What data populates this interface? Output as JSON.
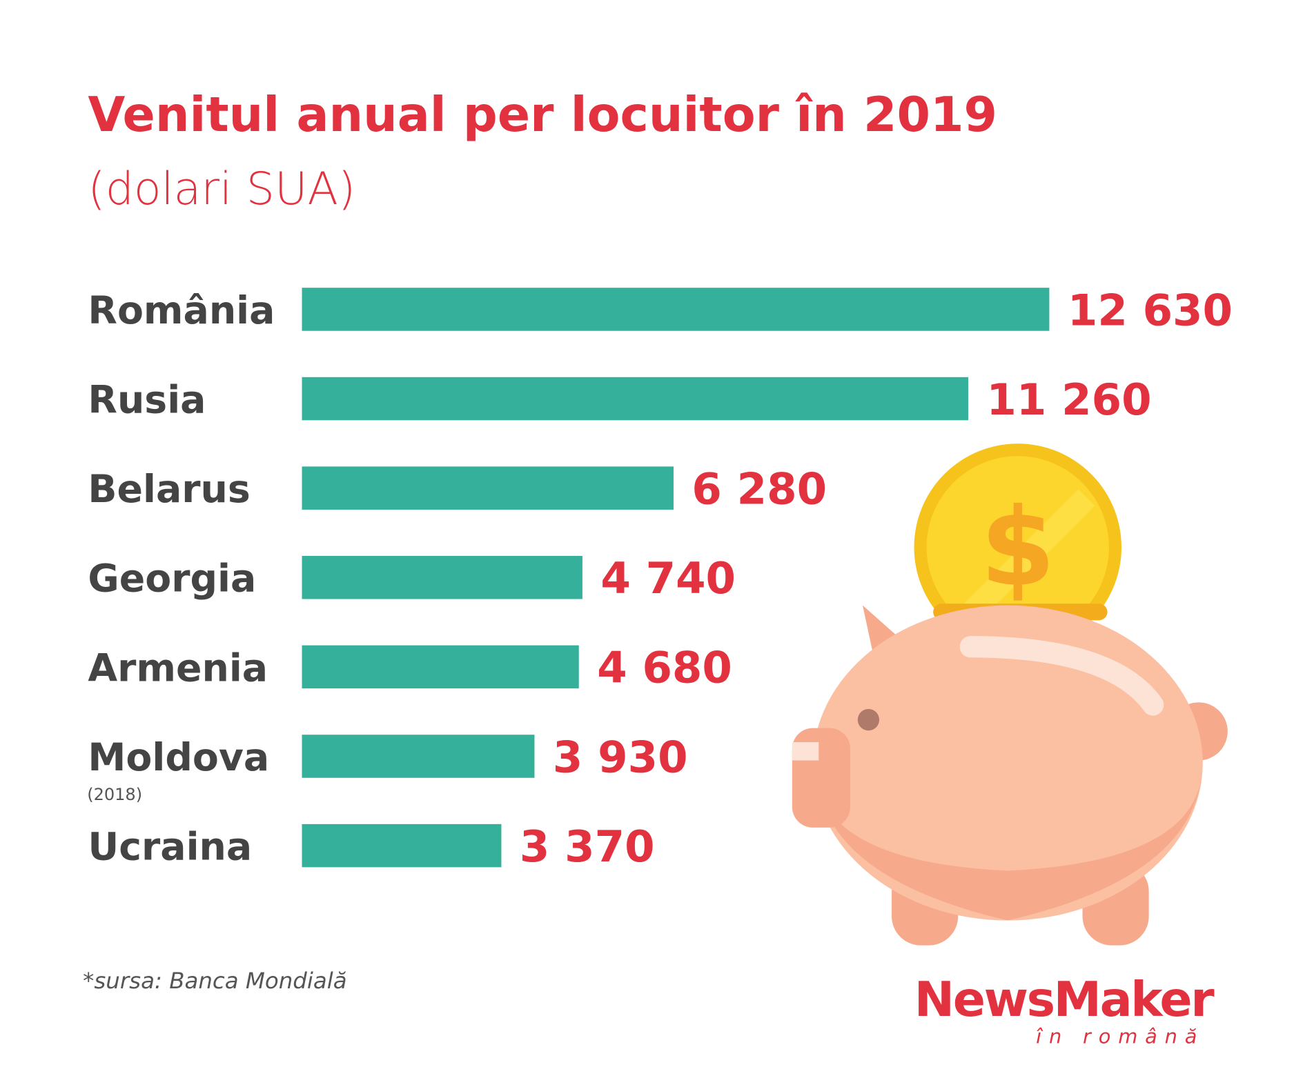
{
  "chart_data": {
    "type": "bar",
    "orientation": "horizontal",
    "title": "Venitul anual per locuitor în 2019",
    "subtitle": "(dolari SUA)",
    "categories": [
      "România",
      "Rusia",
      "Belarus",
      "Georgia",
      "Armenia",
      "Moldova",
      "Ucraina"
    ],
    "values": [
      12630,
      11260,
      6280,
      4740,
      4680,
      3930,
      3370
    ],
    "value_labels": [
      "12 630",
      "11 260",
      "6 280",
      "4 740",
      "4 680",
      "3 930",
      "3 370"
    ],
    "annotations": [
      "(2018)"
    ],
    "color": "#35b09b",
    "label_color": "#e2323f",
    "source": "*sursa: Banca Mondială",
    "brand": {
      "name": "NewsMaker",
      "tagline": "în română"
    }
  }
}
